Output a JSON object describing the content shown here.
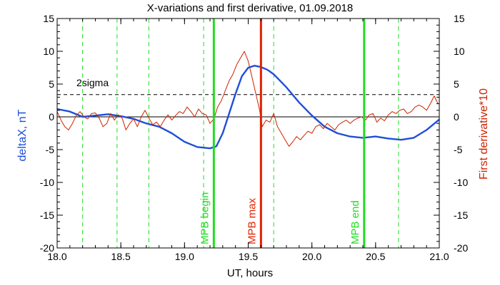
{
  "chart_data": {
    "type": "line",
    "title": "X-variations and first derivative, 01.09.2018",
    "xlabel": "UT, hours",
    "ylabel_left": "deltaX, nT",
    "ylabel_right": "First derivative*10",
    "xlim": [
      18.0,
      21.0
    ],
    "ylim": [
      -20,
      15
    ],
    "x_ticks": [
      "18.0",
      "18.5",
      "19.0",
      "19.5",
      "20.0",
      "20.5",
      "21.0"
    ],
    "x_tick_values": [
      18.0,
      18.5,
      19.0,
      19.5,
      20.0,
      20.5,
      21.0
    ],
    "y_ticks": [
      "15",
      "10",
      "5",
      "0",
      "-5",
      "-10",
      "-15",
      "-20"
    ],
    "y_tick_values": [
      15,
      10,
      5,
      0,
      -5,
      -10,
      -15,
      -20
    ],
    "grid": false,
    "colors": {
      "deltaX": "#1f4fd8",
      "derivative": "#cc2200",
      "mpb": "#22dd22",
      "mpb_max": "#dd2200",
      "sigma_line": "#000000",
      "zero_line": "#000000"
    },
    "sigma": {
      "label": "2sigma",
      "value": 3.4
    },
    "series": [
      {
        "key": "deltaX",
        "x": [
          18.0,
          18.1,
          18.2,
          18.3,
          18.4,
          18.5,
          18.6,
          18.7,
          18.8,
          18.9,
          19.0,
          19.1,
          19.2,
          19.25,
          19.3,
          19.35,
          19.4,
          19.45,
          19.5,
          19.55,
          19.6,
          19.65,
          19.7,
          19.8,
          19.9,
          20.0,
          20.1,
          20.2,
          20.3,
          20.4,
          20.5,
          20.6,
          20.7,
          20.8,
          20.9,
          21.0
        ],
        "y": [
          1.2,
          0.8,
          0.0,
          0.2,
          0.4,
          0.1,
          -0.3,
          -1.0,
          -1.5,
          -2.5,
          -3.8,
          -4.6,
          -4.8,
          -4.5,
          -2.5,
          0.5,
          3.5,
          6.2,
          7.5,
          7.8,
          7.6,
          7.2,
          6.5,
          4.5,
          2.2,
          0.2,
          -1.5,
          -2.5,
          -3.0,
          -3.2,
          -3.0,
          -3.3,
          -3.5,
          -3.2,
          -2.0,
          -0.4
        ]
      },
      {
        "key": "derivative",
        "x": [
          18.0,
          18.03,
          18.06,
          18.09,
          18.12,
          18.15,
          18.18,
          18.21,
          18.24,
          18.27,
          18.3,
          18.33,
          18.36,
          18.39,
          18.42,
          18.45,
          18.48,
          18.51,
          18.54,
          18.57,
          18.6,
          18.63,
          18.66,
          18.69,
          18.72,
          18.75,
          18.78,
          18.81,
          18.84,
          18.87,
          18.9,
          18.93,
          18.96,
          18.99,
          19.02,
          19.05,
          19.08,
          19.11,
          19.14,
          19.17,
          19.2,
          19.23,
          19.26,
          19.29,
          19.32,
          19.35,
          19.38,
          19.41,
          19.44,
          19.47,
          19.5,
          19.53,
          19.56,
          19.59,
          19.61,
          19.64,
          19.67,
          19.7,
          19.73,
          19.76,
          19.79,
          19.82,
          19.85,
          19.88,
          19.91,
          19.94,
          19.97,
          20.0,
          20.03,
          20.06,
          20.09,
          20.12,
          20.15,
          20.18,
          20.21,
          20.24,
          20.27,
          20.3,
          20.33,
          20.36,
          20.39,
          20.42,
          20.45,
          20.48,
          20.51,
          20.54,
          20.57,
          20.6,
          20.63,
          20.66,
          20.69,
          20.72,
          20.75,
          20.78,
          20.81,
          20.84,
          20.87,
          20.9,
          20.93,
          20.96,
          20.99
        ],
        "y": [
          0.8,
          -0.5,
          -1.5,
          -2.0,
          -1.0,
          0.2,
          0.8,
          0.0,
          -0.3,
          0.5,
          0.6,
          -0.2,
          -1.5,
          -1.0,
          0.5,
          -0.5,
          0.3,
          -0.2,
          -2.0,
          -1.0,
          -0.3,
          -1.5,
          0.0,
          1.0,
          -0.2,
          -1.2,
          -0.8,
          -1.5,
          -0.5,
          0.3,
          -0.5,
          0.2,
          0.8,
          0.5,
          1.5,
          0.8,
          0.0,
          1.2,
          0.5,
          0.3,
          -1.0,
          -0.3,
          1.5,
          2.5,
          4.0,
          5.5,
          6.5,
          8.0,
          9.0,
          10.0,
          8.5,
          6.0,
          3.5,
          1.0,
          -1.5,
          -0.5,
          -0.8,
          0.5,
          -1.5,
          -2.5,
          -3.5,
          -4.5,
          -3.8,
          -3.0,
          -3.5,
          -2.8,
          -2.2,
          -2.5,
          -1.5,
          -1.2,
          -1.8,
          -1.0,
          -1.5,
          -2.0,
          -1.2,
          -0.8,
          -0.5,
          -1.0,
          -0.5,
          -0.2,
          0.0,
          -0.5,
          0.3,
          0.5,
          -0.8,
          -0.2,
          -0.6,
          0.3,
          0.8,
          0.5,
          1.0,
          1.2,
          0.5,
          0.8,
          1.5,
          1.8,
          1.5,
          1.0,
          2.0,
          3.2,
          2.0
        ]
      }
    ],
    "dashed_verticals": [
      18.2,
      18.47,
      18.72,
      19.15,
      19.7,
      20.68
    ],
    "markers": [
      {
        "x": 19.23,
        "label": "MPB begin",
        "color": "#22dd22"
      },
      {
        "x": 19.6,
        "label": "MPB max",
        "color": "#dd2200"
      },
      {
        "x": 20.41,
        "label": "MPB end",
        "color": "#22dd22"
      }
    ]
  }
}
